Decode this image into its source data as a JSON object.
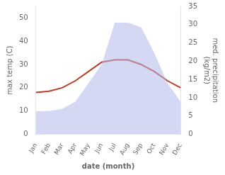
{
  "chart_data": {
    "type": "line",
    "xlabel": "date (month)",
    "ylabel": "max temp (C)",
    "y2label": "med. precipitation\n(kg/m2)",
    "categories": [
      "Jan",
      "Feb",
      "Mar",
      "Apr",
      "May",
      "Jun",
      "Jul",
      "Aug",
      "Sep",
      "Oct",
      "Nov",
      "Dec"
    ],
    "series": [
      {
        "type": "area",
        "color": "#b0b8e8",
        "values": [
          10,
          10,
          11,
          14,
          22,
          30,
          48,
          48,
          46,
          35,
          22,
          14
        ]
      },
      {
        "type": "line",
        "color": "#c0392b",
        "values": [
          18,
          18.5,
          20,
          23,
          27,
          31,
          32,
          32,
          30,
          27,
          23,
          20
        ]
      }
    ],
    "ylim": [
      0,
      55
    ],
    "yticks": [
      0,
      10,
      20,
      30,
      40,
      50
    ],
    "y2lim": [
      0,
      35
    ],
    "y2ticks": [
      0,
      5,
      10,
      15,
      20,
      25,
      30,
      35
    ],
    "grid": false
  }
}
